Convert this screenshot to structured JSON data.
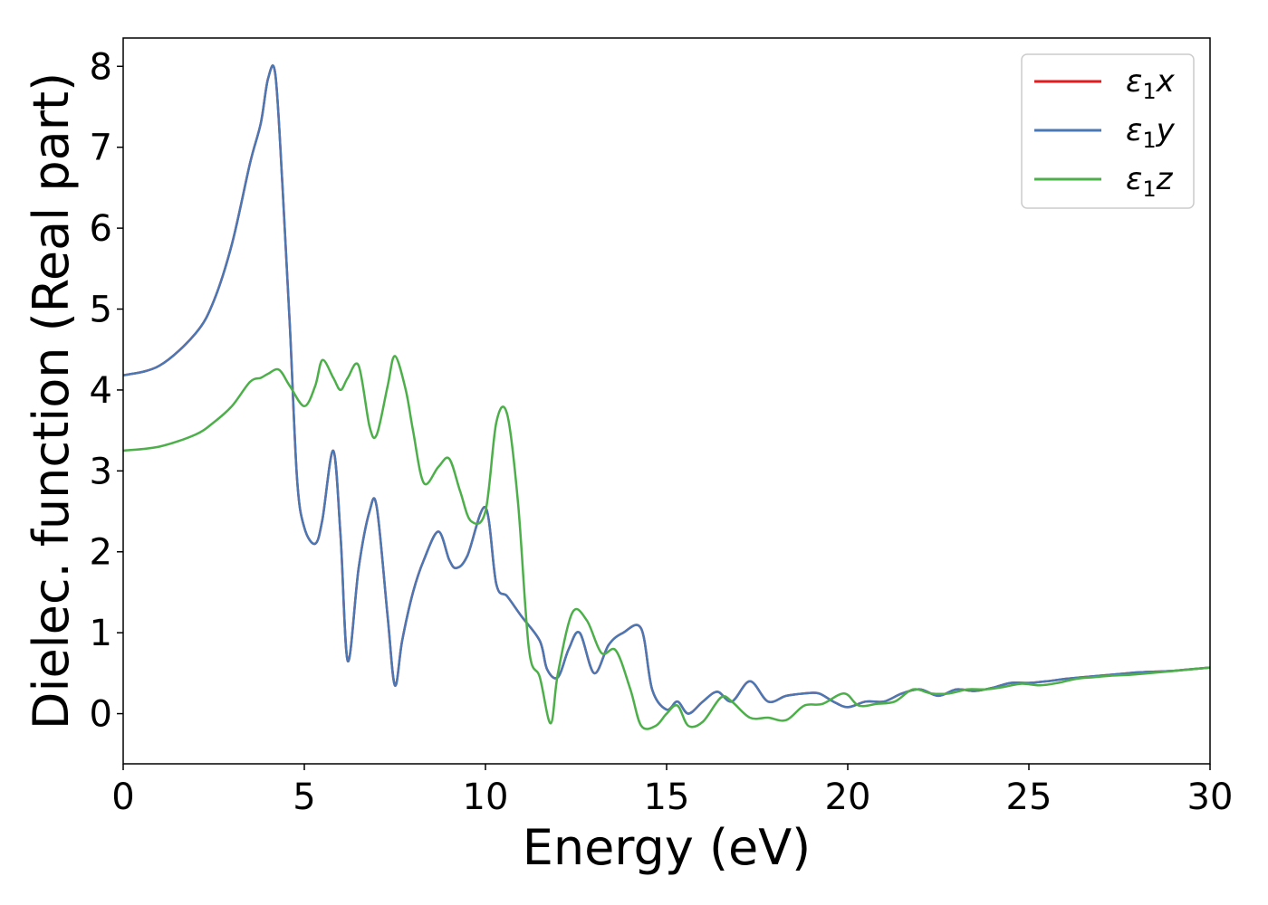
{
  "chart_data": {
    "type": "line",
    "title": "",
    "xlabel": "Energy (eV)",
    "ylabel": "Dielec. function (Real part)",
    "xlim": [
      0,
      30
    ],
    "ylim": [
      -0.62,
      8.35
    ],
    "xticks": [
      0,
      5,
      10,
      15,
      20,
      25,
      30
    ],
    "yticks": [
      0,
      1,
      2,
      3,
      4,
      5,
      6,
      7,
      8
    ],
    "grid": false,
    "legend_position": "top-right",
    "series": [
      {
        "name": "ε1x",
        "legend_main": "ε",
        "legend_sub": "1",
        "legend_suffix": "x",
        "color": "#e41a1c",
        "x": [
          0,
          1,
          2,
          2.5,
          3,
          3.5,
          3.8,
          4,
          4.2,
          4.4,
          4.6,
          4.8,
          5,
          5.3,
          5.5,
          5.8,
          6,
          6.2,
          6.5,
          6.8,
          7,
          7.3,
          7.5,
          7.7,
          8,
          8.3,
          8.7,
          9,
          9.2,
          9.5,
          10,
          10.3,
          10.6,
          11,
          11.5,
          11.7,
          12,
          12.3,
          12.6,
          13,
          13.4,
          13.8,
          14.3,
          14.6,
          15,
          15.3,
          15.6,
          16,
          16.4,
          16.8,
          17.3,
          17.8,
          18.3,
          18.8,
          19.2,
          19.6,
          20,
          20.5,
          21,
          21.5,
          22,
          22.5,
          23,
          23.5,
          24,
          24.5,
          25,
          25.5,
          26,
          26.5,
          27,
          27.5,
          28,
          28.5,
          29,
          29.5,
          30
        ],
        "y": [
          4.18,
          4.3,
          4.7,
          5.1,
          5.8,
          6.8,
          7.3,
          7.85,
          7.9,
          6.5,
          4.8,
          2.9,
          2.3,
          2.1,
          2.4,
          3.25,
          2.2,
          0.65,
          1.8,
          2.5,
          2.55,
          1.2,
          0.35,
          0.9,
          1.5,
          1.9,
          2.25,
          1.9,
          1.8,
          1.95,
          2.55,
          1.6,
          1.45,
          1.2,
          0.9,
          0.55,
          0.45,
          0.8,
          1.0,
          0.5,
          0.85,
          1.0,
          1.05,
          0.3,
          0.05,
          0.15,
          0.0,
          0.15,
          0.27,
          0.15,
          0.4,
          0.15,
          0.22,
          0.25,
          0.25,
          0.15,
          0.08,
          0.15,
          0.15,
          0.25,
          0.3,
          0.22,
          0.3,
          0.28,
          0.32,
          0.38,
          0.38,
          0.4,
          0.43,
          0.45,
          0.47,
          0.49,
          0.51,
          0.52,
          0.53,
          0.55,
          0.57
        ]
      },
      {
        "name": "ε1y",
        "legend_main": "ε",
        "legend_sub": "1",
        "legend_suffix": "y",
        "color": "#4a78b4",
        "x": [
          0,
          1,
          2,
          2.5,
          3,
          3.5,
          3.8,
          4,
          4.2,
          4.4,
          4.6,
          4.8,
          5,
          5.3,
          5.5,
          5.8,
          6,
          6.2,
          6.5,
          6.8,
          7,
          7.3,
          7.5,
          7.7,
          8,
          8.3,
          8.7,
          9,
          9.2,
          9.5,
          10,
          10.3,
          10.6,
          11,
          11.5,
          11.7,
          12,
          12.3,
          12.6,
          13,
          13.4,
          13.8,
          14.3,
          14.6,
          15,
          15.3,
          15.6,
          16,
          16.4,
          16.8,
          17.3,
          17.8,
          18.3,
          18.8,
          19.2,
          19.6,
          20,
          20.5,
          21,
          21.5,
          22,
          22.5,
          23,
          23.5,
          24,
          24.5,
          25,
          25.5,
          26,
          26.5,
          27,
          27.5,
          28,
          28.5,
          29,
          29.5,
          30
        ],
        "y": [
          4.18,
          4.3,
          4.7,
          5.1,
          5.8,
          6.8,
          7.3,
          7.85,
          7.9,
          6.5,
          4.8,
          2.9,
          2.3,
          2.1,
          2.4,
          3.25,
          2.2,
          0.65,
          1.8,
          2.5,
          2.55,
          1.2,
          0.35,
          0.9,
          1.5,
          1.9,
          2.25,
          1.9,
          1.8,
          1.95,
          2.55,
          1.6,
          1.45,
          1.2,
          0.9,
          0.55,
          0.45,
          0.8,
          1.0,
          0.5,
          0.85,
          1.0,
          1.05,
          0.3,
          0.05,
          0.15,
          0.0,
          0.15,
          0.27,
          0.15,
          0.4,
          0.15,
          0.22,
          0.25,
          0.25,
          0.15,
          0.08,
          0.15,
          0.15,
          0.25,
          0.3,
          0.22,
          0.3,
          0.28,
          0.32,
          0.38,
          0.38,
          0.4,
          0.43,
          0.45,
          0.47,
          0.49,
          0.51,
          0.52,
          0.53,
          0.55,
          0.57
        ]
      },
      {
        "name": "ε1z",
        "legend_main": "ε",
        "legend_sub": "1",
        "legend_suffix": "z",
        "color": "#4daf4a",
        "x": [
          0,
          1,
          2,
          2.5,
          3,
          3.5,
          3.8,
          4,
          4.3,
          4.6,
          5,
          5.3,
          5.5,
          5.8,
          6,
          6.2,
          6.5,
          6.8,
          7,
          7.3,
          7.5,
          7.8,
          8,
          8.3,
          8.7,
          9,
          9.3,
          9.6,
          10,
          10.3,
          10.6,
          10.9,
          11.2,
          11.5,
          11.8,
          12,
          12.4,
          12.8,
          13.2,
          13.6,
          14,
          14.3,
          14.7,
          15,
          15.3,
          15.6,
          16,
          16.5,
          16.8,
          17.3,
          17.8,
          18.3,
          18.8,
          19.3,
          19.9,
          20.3,
          20.8,
          21.3,
          21.8,
          22.3,
          22.8,
          23.3,
          23.8,
          24.3,
          24.8,
          25.3,
          25.8,
          26.3,
          26.8,
          27.3,
          27.8,
          28.3,
          28.8,
          29.3,
          30
        ],
        "y": [
          3.25,
          3.3,
          3.45,
          3.6,
          3.8,
          4.1,
          4.15,
          4.2,
          4.25,
          4.05,
          3.8,
          4.05,
          4.37,
          4.15,
          4.0,
          4.15,
          4.3,
          3.55,
          3.45,
          4.05,
          4.42,
          4.0,
          3.5,
          2.85,
          3.05,
          3.15,
          2.75,
          2.38,
          2.5,
          3.6,
          3.7,
          2.6,
          0.8,
          0.45,
          -0.12,
          0.5,
          1.25,
          1.15,
          0.75,
          0.78,
          0.3,
          -0.15,
          -0.15,
          0.0,
          0.1,
          -0.15,
          -0.1,
          0.2,
          0.15,
          -0.05,
          -0.05,
          -0.08,
          0.1,
          0.12,
          0.25,
          0.1,
          0.12,
          0.15,
          0.3,
          0.25,
          0.25,
          0.3,
          0.3,
          0.33,
          0.37,
          0.35,
          0.38,
          0.43,
          0.45,
          0.47,
          0.48,
          0.5,
          0.52,
          0.54,
          0.57
        ]
      }
    ]
  }
}
